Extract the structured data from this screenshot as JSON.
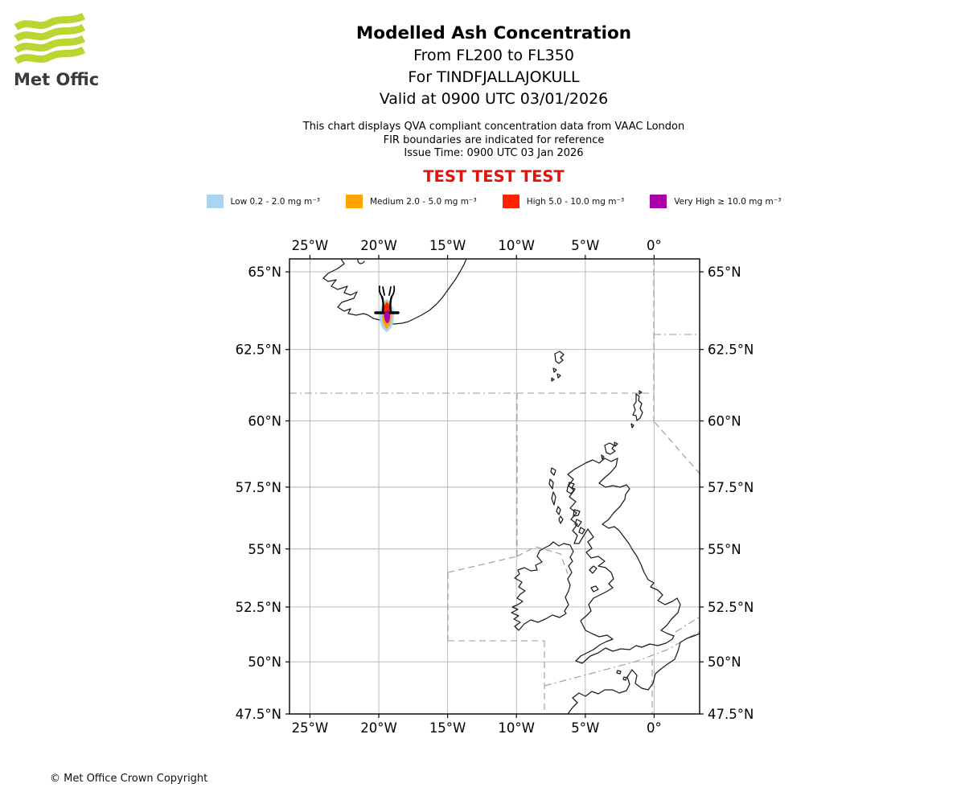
{
  "logo": {
    "text": "Met Office",
    "brand_green": "#bcd531"
  },
  "header": {
    "title": "Modelled Ash Concentration",
    "subtitle_lines": [
      "From FL200 to FL350",
      "For TINDFJALLAJOKULL",
      "Valid at 0900 UTC 03/01/2026"
    ],
    "info_lines": [
      "This chart displays QVA compliant concentration data from VAAC London",
      "FIR boundaries are indicated for reference",
      "Issue Time: 0900 UTC 03 Jan 2026"
    ],
    "test_banner": "TEST TEST TEST",
    "test_banner_color": "#e3120b"
  },
  "legend": {
    "items": [
      {
        "name": "low",
        "label": "Low 0.2 - 2.0 mg m⁻³",
        "color": "#a9d5f5"
      },
      {
        "name": "medium",
        "label": "Medium 2.0 - 5.0 mg m⁻³",
        "color": "#ffa400"
      },
      {
        "name": "high",
        "label": "High 5.0 - 10.0 mg m⁻³",
        "color": "#ff2200"
      },
      {
        "name": "very-high",
        "label": "Very High ≥ 10.0 mg m⁻³",
        "color": "#aa00aa"
      }
    ]
  },
  "map": {
    "lon_ticks": [
      {
        "deg": -25,
        "label": "25°W"
      },
      {
        "deg": -20,
        "label": "20°W"
      },
      {
        "deg": -15,
        "label": "15°W"
      },
      {
        "deg": -10,
        "label": "10°W"
      },
      {
        "deg": -5,
        "label": "5°W"
      },
      {
        "deg": 0,
        "label": "0°"
      }
    ],
    "lat_ticks": [
      {
        "deg": 65,
        "label": "65°N"
      },
      {
        "deg": 62.5,
        "label": "62.5°N"
      },
      {
        "deg": 60,
        "label": "60°N"
      },
      {
        "deg": 57.5,
        "label": "57.5°N"
      },
      {
        "deg": 55,
        "label": "55°N"
      },
      {
        "deg": 52.5,
        "label": "52.5°N"
      },
      {
        "deg": 50,
        "label": "50°N"
      },
      {
        "deg": 47.5,
        "label": "47.5°N"
      }
    ],
    "colors": {
      "grid": "#b3b3b3",
      "fir_boundary": "#999999",
      "coastline": "#1c1c1c"
    }
  },
  "footer": {
    "copyright": "© Met Office Crown Copyright"
  }
}
